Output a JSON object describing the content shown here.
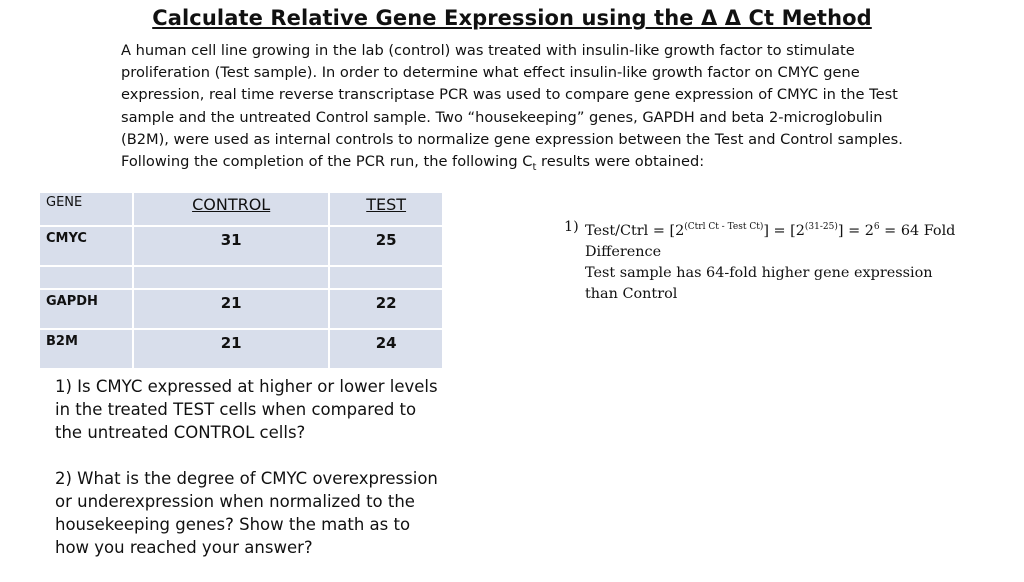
{
  "title": "Calculate Relative Gene Expression using the Δ Δ Ct Method",
  "intro": {
    "text": "A human cell line growing in the lab (control) was treated with insulin-like growth factor to stimulate proliferation (Test sample). In order to determine what effect insulin-like growth factor on CMYC gene expression, real time reverse transcriptase PCR was used to compare gene expression of CMYC in the Test sample and the untreated Control sample. Two “housekeeping” genes, GAPDH and beta 2-microglobulin (B2M), were used as internal controls to normalize gene expression between the Test and Control samples. Following the completion of the PCR run, the following C",
    "subscript": "t",
    "tail": " results were obtained:"
  },
  "table": {
    "headers": [
      "GENE",
      "CONTROL",
      "TEST"
    ],
    "rows": [
      {
        "gene": "CMYC",
        "control": "31",
        "test": "25"
      },
      {
        "gene": "GAPDH",
        "control": "21",
        "test": "22"
      },
      {
        "gene": "B2M",
        "control": "21",
        "test": "24"
      }
    ]
  },
  "questions": [
    "1) Is CMYC expressed at higher or lower levels in the treated TEST cells when compared to the untreated CONTROL cells?",
    "2) What is the degree of  CMYC overexpression or underexpression when normalized to the housekeeping genes? Show the math as to how you reached your answer?"
  ],
  "answer": {
    "number": "1)",
    "part1": "Test/Ctrl = [2",
    "sup1": "(Ctrl Ct - Test Ct)",
    "part2": "] = [2",
    "sup2": "(31-25)",
    "part3": "] = 2",
    "sup3": "6",
    "part4": " = 64 Fold Difference",
    "conclusion": "Test sample has 64-fold higher gene expression than Control"
  }
}
